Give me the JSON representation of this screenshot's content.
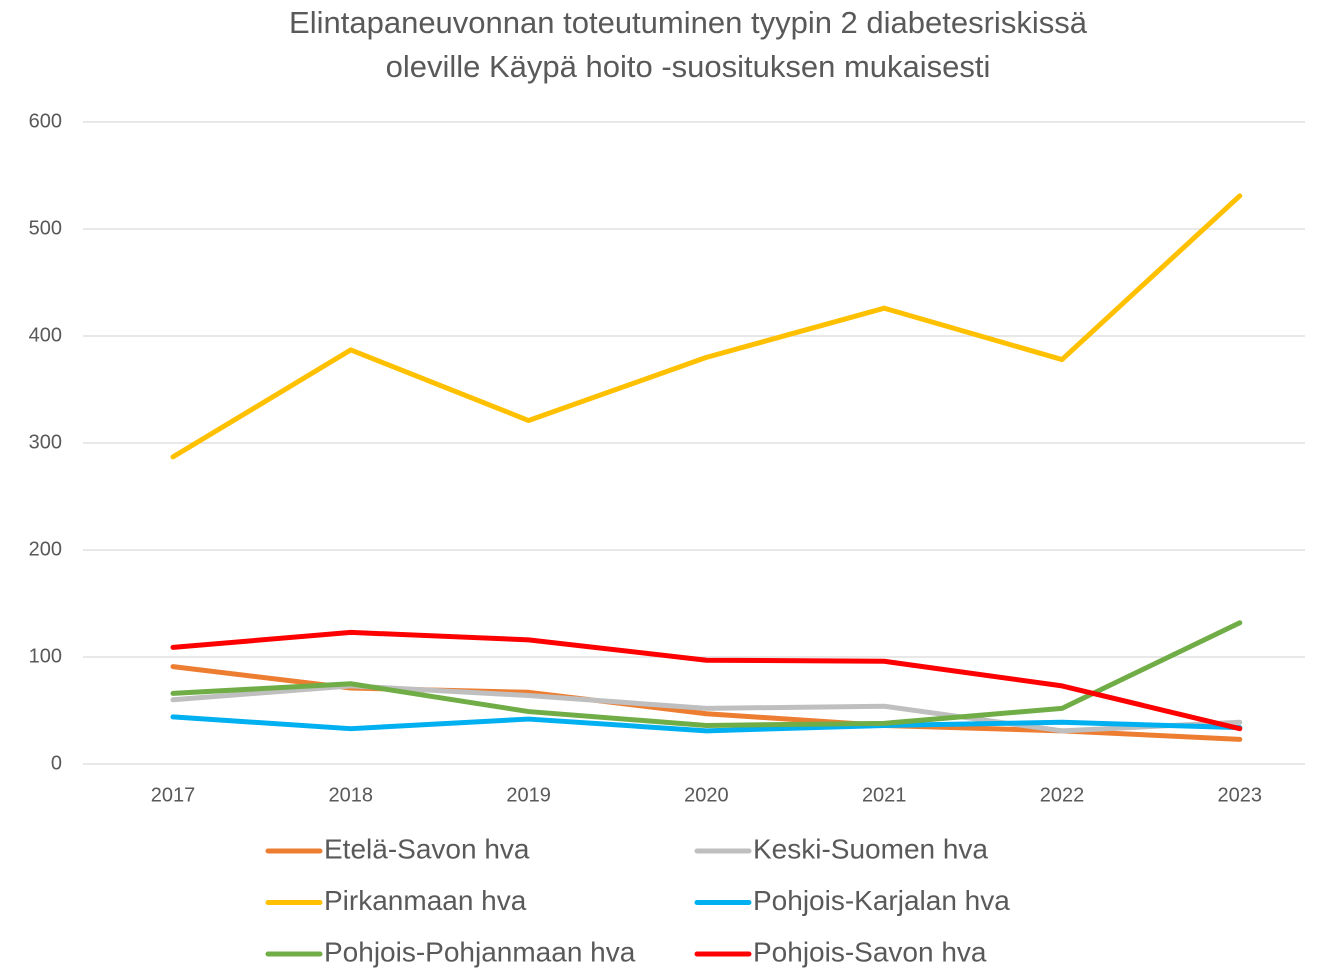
{
  "chart_data": {
    "type": "line",
    "title": [
      "Elintapaneuvonnan toteutuminen tyypin 2 diabetesriskissä",
      "oleville Käypä hoito -suosituksen mukaisesti"
    ],
    "categories": [
      "2017",
      "2018",
      "2019",
      "2020",
      "2021",
      "2022",
      "2023"
    ],
    "series": [
      {
        "name": "Etelä-Savon hva",
        "color": "#ED7D31",
        "values": [
          91,
          71,
          67,
          47,
          36,
          31,
          23
        ]
      },
      {
        "name": "Keski-Suomen hva",
        "color": "#BFBFBF",
        "values": [
          60,
          73,
          64,
          52,
          54,
          31,
          39
        ]
      },
      {
        "name": "Pirkanmaan hva",
        "color": "#FFC000",
        "values": [
          287,
          387,
          321,
          380,
          426,
          378,
          531
        ]
      },
      {
        "name": "Pohjois-Karjalan hva",
        "color": "#00B0F0",
        "values": [
          44,
          33,
          42,
          31,
          36,
          39,
          34
        ]
      },
      {
        "name": "Pohjois-Pohjanmaan hva",
        "color": "#70AD47",
        "values": [
          66,
          75,
          49,
          36,
          38,
          52,
          132
        ]
      },
      {
        "name": "Pohjois-Savon hva",
        "color": "#FF0000",
        "values": [
          109,
          123,
          116,
          97,
          96,
          73,
          33
        ]
      }
    ],
    "ylim": [
      0,
      600
    ],
    "yticks": [
      0,
      100,
      200,
      300,
      400,
      500,
      600
    ],
    "grid": true,
    "legend": "bottom"
  }
}
